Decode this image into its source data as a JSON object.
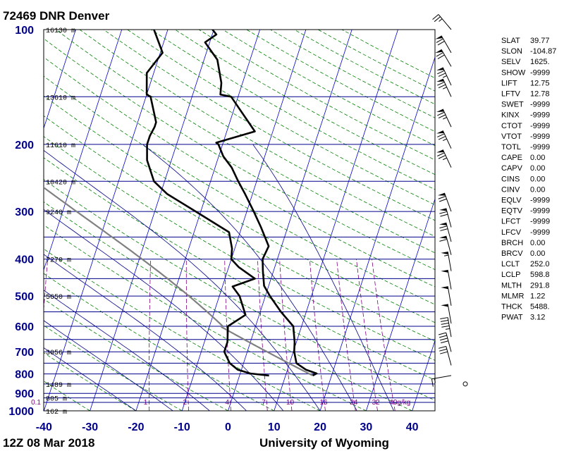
{
  "title": "72469 DNR Denver",
  "footer_left": "12Z 08 Mar 2018",
  "footer_right": "University of Wyoming",
  "chart_data": {
    "type": "line",
    "subtype": "skew-t log-p",
    "pressure_levels": [
      {
        "p": 100,
        "label": "100",
        "height": "16130 m"
      },
      {
        "p": 150,
        "label": "",
        "height": "13610 m"
      },
      {
        "p": 200,
        "label": "200",
        "height": "11610 m"
      },
      {
        "p": 250,
        "label": "",
        "height": "10420 m"
      },
      {
        "p": 300,
        "label": "300",
        "height": "9240 m"
      },
      {
        "p": 400,
        "label": "400",
        "height": "7270 m"
      },
      {
        "p": 500,
        "label": "500",
        "height": "5650 m"
      },
      {
        "p": 600,
        "label": "600",
        "height": ""
      },
      {
        "p": 700,
        "label": "700",
        "height": "3056 m"
      },
      {
        "p": 800,
        "label": "800",
        "height": ""
      },
      {
        "p": 850,
        "label": "",
        "height": "1489 m"
      },
      {
        "p": 900,
        "label": "900",
        "height": ""
      },
      {
        "p": 925,
        "label": "",
        "height": "805 m"
      },
      {
        "p": 1000,
        "label": "1000",
        "height": "162 m"
      }
    ],
    "temperature_ticks": [
      -40,
      -30,
      -20,
      -10,
      0,
      10,
      20,
      30,
      40
    ],
    "xlim": [
      -40,
      45
    ],
    "ylim": [
      1000,
      100
    ],
    "mixing_ratio_labels": [
      "0.1",
      "1",
      "2",
      "4",
      "7",
      "10",
      "16",
      "24",
      "32",
      "40g/kg"
    ],
    "series": [
      {
        "role": "temperature",
        "values": [
          [
            808,
            15.9
          ],
          [
            798,
            16.6
          ],
          [
            780,
            14.0
          ],
          [
            750,
            11.5
          ],
          [
            700,
            10.2
          ],
          [
            660,
            9.6
          ],
          [
            600,
            8.2
          ],
          [
            550,
            4.5
          ],
          [
            500,
            1.0
          ],
          [
            470,
            -1.0
          ],
          [
            430,
            -2.3
          ],
          [
            400,
            -3.2
          ],
          [
            370,
            -2.8
          ],
          [
            330,
            -5.8
          ],
          [
            300,
            -8.5
          ],
          [
            270,
            -11.6
          ],
          [
            250,
            -14.0
          ],
          [
            230,
            -16.4
          ],
          [
            215,
            -19.0
          ],
          [
            200,
            -20.9
          ],
          [
            198,
            -21.5
          ],
          [
            185,
            -13.9
          ],
          [
            150,
            -21.5
          ],
          [
            148,
            -24.0
          ],
          [
            138,
            -24.6
          ],
          [
            120,
            -27.1
          ],
          [
            108,
            -31.0
          ],
          [
            103,
            -29.1
          ],
          [
            100,
            -30.3
          ]
        ]
      },
      {
        "role": "dewpoint",
        "values": [
          [
            808,
            6.4
          ],
          [
            798,
            2.2
          ],
          [
            780,
            -0.8
          ],
          [
            750,
            -3.0
          ],
          [
            700,
            -5.0
          ],
          [
            660,
            -5.0
          ],
          [
            600,
            -6.0
          ],
          [
            560,
            -3.0
          ],
          [
            500,
            -5.6
          ],
          [
            472,
            -7.8
          ],
          [
            450,
            -3.5
          ],
          [
            420,
            -7.8
          ],
          [
            400,
            -10.0
          ],
          [
            375,
            -10.6
          ],
          [
            340,
            -12.4
          ],
          [
            300,
            -21.1
          ],
          [
            270,
            -28.5
          ],
          [
            250,
            -32.3
          ],
          [
            220,
            -35.3
          ],
          [
            200,
            -36.4
          ],
          [
            190,
            -36.4
          ],
          [
            180,
            -36.0
          ],
          [
            175,
            -36.0
          ],
          [
            150,
            -39.0
          ],
          [
            148,
            -40.0
          ],
          [
            130,
            -41.5
          ],
          [
            115,
            -39.5
          ],
          [
            100,
            -43.0
          ]
        ]
      }
    ],
    "grid": true
  },
  "barbs": [
    {
      "p": 100,
      "dir": 320,
      "spd": 25
    },
    {
      "p": 115,
      "dir": 330,
      "spd": 70
    },
    {
      "p": 125,
      "dir": 330,
      "spd": 70
    },
    {
      "p": 140,
      "dir": 335,
      "spd": 75
    },
    {
      "p": 150,
      "dir": 335,
      "spd": 75
    },
    {
      "p": 180,
      "dir": 335,
      "spd": 75
    },
    {
      "p": 205,
      "dir": 335,
      "spd": 75
    },
    {
      "p": 230,
      "dir": 335,
      "spd": 75
    },
    {
      "p": 300,
      "dir": 340,
      "spd": 70
    },
    {
      "p": 330,
      "dir": 345,
      "spd": 70
    },
    {
      "p": 360,
      "dir": 345,
      "spd": 70
    },
    {
      "p": 390,
      "dir": 345,
      "spd": 60
    },
    {
      "p": 430,
      "dir": 350,
      "spd": 55
    },
    {
      "p": 480,
      "dir": 350,
      "spd": 50
    },
    {
      "p": 530,
      "dir": 350,
      "spd": 50
    },
    {
      "p": 590,
      "dir": 350,
      "spd": 50
    },
    {
      "p": 640,
      "dir": 350,
      "spd": 45
    },
    {
      "p": 700,
      "dir": 345,
      "spd": 40
    },
    {
      "p": 760,
      "dir": 345,
      "spd": 30
    },
    {
      "p": 808,
      "dir": 260,
      "spd": 15
    },
    {
      "p": 850,
      "dir": 0,
      "spd": 0
    }
  ],
  "indices": [
    {
      "key": "SLAT",
      "value": "39.77"
    },
    {
      "key": "SLON",
      "value": "-104.87"
    },
    {
      "key": "SELV",
      "value": "1625."
    },
    {
      "key": "SHOW",
      "value": "-9999"
    },
    {
      "key": "LIFT",
      "value": "12.75"
    },
    {
      "key": "LFTV",
      "value": "12.78"
    },
    {
      "key": "SWET",
      "value": "-9999"
    },
    {
      "key": "KINX",
      "value": "-9999"
    },
    {
      "key": "CTOT",
      "value": "-9999"
    },
    {
      "key": "VTOT",
      "value": "-9999"
    },
    {
      "key": "TOTL",
      "value": "-9999"
    },
    {
      "key": "CAPE",
      "value": "0.00"
    },
    {
      "key": "CAPV",
      "value": "0.00"
    },
    {
      "key": "CINS",
      "value": "0.00"
    },
    {
      "key": "CINV",
      "value": "0.00"
    },
    {
      "key": "EQLV",
      "value": "-9999"
    },
    {
      "key": "EQTV",
      "value": "-9999"
    },
    {
      "key": "LFCT",
      "value": "-9999"
    },
    {
      "key": "LFCV",
      "value": "-9999"
    },
    {
      "key": "BRCH",
      "value": "0.00"
    },
    {
      "key": "BRCV",
      "value": "0.00"
    },
    {
      "key": "LCLT",
      "value": "252.0"
    },
    {
      "key": "LCLP",
      "value": "598.8"
    },
    {
      "key": "MLTH",
      "value": "291.8"
    },
    {
      "key": "MLMR",
      "value": "1.22"
    },
    {
      "key": "THCK",
      "value": "5488."
    },
    {
      "key": "PWAT",
      "value": "3.12"
    }
  ],
  "colors": {
    "isobar": "#00008b",
    "isotherm": "#0000cd",
    "dry_adiabat": "#008000",
    "moist_adiabat": "#00008b",
    "mixing_ratio": "#800080",
    "profile": "#000000",
    "parcel": "#808080",
    "axis_label": "#00008b"
  }
}
